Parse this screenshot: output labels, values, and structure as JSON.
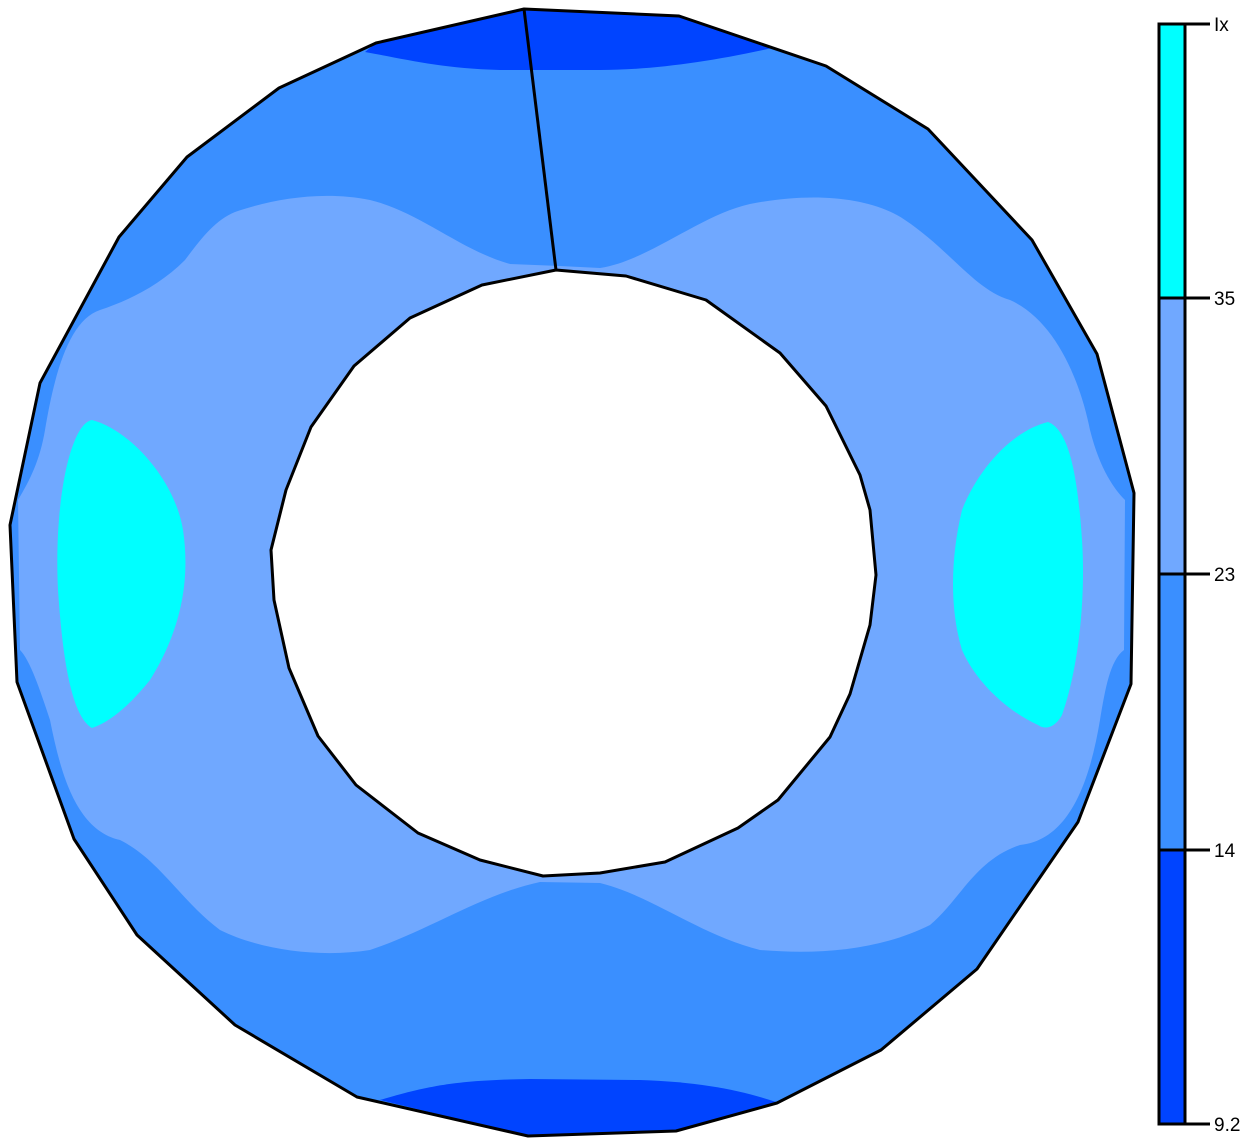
{
  "colors": {
    "band_9_2_to_14": "#0044ff",
    "band_14_to_23": "#3a8fff",
    "band_23_to_35": "#70a8ff",
    "band_35_to_max": "#00ffff",
    "outline": "#000000",
    "background": "#ffffff"
  },
  "legend": {
    "top_label": "Ix",
    "tick_labels": [
      "35",
      "23",
      "14",
      "9.2"
    ]
  }
}
